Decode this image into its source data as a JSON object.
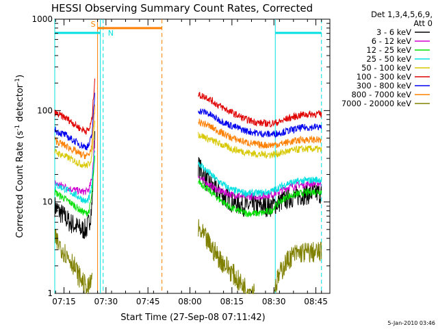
{
  "chart_data": {
    "type": "line",
    "title": "HESSI Observing Summary Count Rates, Corrected",
    "xlabel": "Start Time (27-Sep-08 07:11:42)",
    "ylabel_main": "Corrected Count Rate (s",
    "ylabel_sup1": "-1",
    "ylabel_mid": " detector",
    "ylabel_sup2": "-1",
    "ylabel_end": ")",
    "y_scale": "log",
    "ylim": [
      1,
      1000
    ],
    "xlim_minutes": [
      431.7,
      530.0
    ],
    "y_ticks": [
      {
        "value": 1,
        "label": "1"
      },
      {
        "value": 10,
        "label": "10"
      },
      {
        "value": 100,
        "label": "100"
      },
      {
        "value": 1000,
        "label": "1000"
      }
    ],
    "x_ticks": [
      {
        "value": 435,
        "label": "07:15"
      },
      {
        "value": 450,
        "label": "07:30"
      },
      {
        "value": 465,
        "label": "07:45"
      },
      {
        "value": 480,
        "label": "08:00"
      },
      {
        "value": 495,
        "label": "08:15"
      },
      {
        "value": 510,
        "label": "08:30"
      },
      {
        "value": 525,
        "label": "08:45"
      }
    ],
    "legend": {
      "placement": "right",
      "header_line1": "Det 1,3,4,5,6,9,",
      "header_line2": "Att 0"
    },
    "series": [
      {
        "name": "3 - 6 keV",
        "color": "#000000",
        "segments": [
          [
            [
              431.7,
              9
            ],
            [
              433,
              8
            ],
            [
              435,
              7
            ],
            [
              437,
              6
            ],
            [
              439,
              5.5
            ],
            [
              441,
              5
            ],
            [
              443,
              5
            ],
            [
              444,
              6
            ],
            [
              445,
              9
            ],
            [
              446,
              60
            ]
          ],
          [
            [
              483,
              25
            ],
            [
              486,
              17
            ],
            [
              490,
              13
            ],
            [
              495,
              10
            ],
            [
              500,
              9
            ],
            [
              505,
              9
            ],
            [
              509,
              9
            ],
            [
              512,
              10
            ],
            [
              515,
              11
            ],
            [
              520,
              12
            ],
            [
              525,
              12.5
            ],
            [
              527,
              12.5
            ]
          ]
        ]
      },
      {
        "name": "6 - 12 keV",
        "color": "#d000d0",
        "segments": [
          [
            [
              431.7,
              16
            ],
            [
              433,
              15.5
            ],
            [
              435,
              15
            ],
            [
              437,
              14
            ],
            [
              439,
              13.5
            ],
            [
              441,
              13
            ],
            [
              443,
              13
            ],
            [
              444,
              14
            ],
            [
              445,
              18
            ],
            [
              446,
              50
            ]
          ],
          [
            [
              483,
              19
            ],
            [
              486,
              16
            ],
            [
              490,
              13.5
            ],
            [
              495,
              12
            ],
            [
              500,
              11.5
            ],
            [
              505,
              11.5
            ],
            [
              509,
              12
            ],
            [
              512,
              13
            ],
            [
              515,
              14.5
            ],
            [
              520,
              15.5
            ],
            [
              525,
              16
            ],
            [
              527,
              16
            ]
          ]
        ]
      },
      {
        "name": "12 - 25 keV",
        "color": "#00e000",
        "segments": [
          [
            [
              431.7,
              13
            ],
            [
              433,
              12
            ],
            [
              435,
              11
            ],
            [
              437,
              10
            ],
            [
              439,
              9
            ],
            [
              441,
              8
            ],
            [
              443,
              7.5
            ],
            [
              444,
              8
            ],
            [
              445,
              12
            ],
            [
              446,
              30
            ]
          ],
          [
            [
              483,
              17
            ],
            [
              486,
              14
            ],
            [
              490,
              11
            ],
            [
              495,
              8.5
            ],
            [
              500,
              7.5
            ],
            [
              505,
              7.5
            ],
            [
              509,
              8
            ],
            [
              512,
              10
            ],
            [
              515,
              11.5
            ],
            [
              520,
              12.5
            ],
            [
              525,
              13
            ],
            [
              527,
              13
            ]
          ]
        ]
      },
      {
        "name": "25 - 50 keV",
        "color": "#00e0e0",
        "segments": [
          [
            [
              431.7,
              15
            ],
            [
              433,
              15
            ],
            [
              435,
              14
            ],
            [
              437,
              13
            ],
            [
              439,
              12
            ],
            [
              441,
              11
            ],
            [
              443,
              10
            ],
            [
              444,
              11
            ],
            [
              445,
              15
            ],
            [
              446,
              40
            ]
          ],
          [
            [
              483,
              27
            ],
            [
              486,
              22
            ],
            [
              490,
              17
            ],
            [
              495,
              13.5
            ],
            [
              500,
              12.5
            ],
            [
              505,
              12.5
            ],
            [
              509,
              13
            ],
            [
              512,
              14.5
            ],
            [
              515,
              16
            ],
            [
              520,
              17
            ],
            [
              525,
              17.5
            ],
            [
              527,
              17.5
            ]
          ]
        ]
      },
      {
        "name": "50 - 100 keV",
        "color": "#d8c800",
        "segments": [
          [
            [
              431.7,
              35
            ],
            [
              433,
              34
            ],
            [
              435,
              32
            ],
            [
              437,
              30
            ],
            [
              439,
              28
            ],
            [
              441,
              26
            ],
            [
              443,
              25
            ],
            [
              444,
              26
            ],
            [
              445,
              32
            ],
            [
              446,
              80
            ]
          ],
          [
            [
              483,
              55
            ],
            [
              486,
              50
            ],
            [
              490,
              44
            ],
            [
              495,
              38
            ],
            [
              500,
              35
            ],
            [
              505,
              33
            ],
            [
              509,
              33
            ],
            [
              512,
              34
            ],
            [
              515,
              36
            ],
            [
              520,
              38
            ],
            [
              525,
              38
            ],
            [
              527,
              37
            ]
          ]
        ]
      },
      {
        "name": "100 - 300 keV",
        "color": "#e00000",
        "segments": [
          [
            [
              431.7,
              95
            ],
            [
              433,
              90
            ],
            [
              435,
              85
            ],
            [
              437,
              78
            ],
            [
              439,
              70
            ],
            [
              441,
              63
            ],
            [
              443,
              60
            ],
            [
              444,
              62
            ],
            [
              445,
              80
            ],
            [
              446,
              230
            ]
          ],
          [
            [
              483,
              148
            ],
            [
              486,
              140
            ],
            [
              490,
              115
            ],
            [
              495,
              95
            ],
            [
              500,
              80
            ],
            [
              505,
              73
            ],
            [
              509,
              72
            ],
            [
              512,
              75
            ],
            [
              515,
              82
            ],
            [
              520,
              90
            ],
            [
              525,
              92
            ],
            [
              527,
              91
            ]
          ]
        ]
      },
      {
        "name": "300 - 800 keV",
        "color": "#0000f0",
        "segments": [
          [
            [
              431.7,
              62
            ],
            [
              433,
              58
            ],
            [
              435,
              55
            ],
            [
              437,
              50
            ],
            [
              439,
              46
            ],
            [
              441,
              42
            ],
            [
              443,
              40
            ],
            [
              444,
              42
            ],
            [
              445,
              55
            ],
            [
              446,
              150
            ]
          ],
          [
            [
              483,
              100
            ],
            [
              486,
              95
            ],
            [
              490,
              80
            ],
            [
              495,
              68
            ],
            [
              500,
              60
            ],
            [
              505,
              56
            ],
            [
              509,
              55
            ],
            [
              512,
              57
            ],
            [
              515,
              60
            ],
            [
              520,
              65
            ],
            [
              525,
              66
            ],
            [
              527,
              66
            ]
          ]
        ]
      },
      {
        "name": "800 - 7000 keV",
        "color": "#ff8000",
        "segments": [
          [
            [
              431.7,
              48
            ],
            [
              433,
              45
            ],
            [
              435,
              42
            ],
            [
              437,
              39
            ],
            [
              439,
              36
            ],
            [
              441,
              33
            ],
            [
              443,
              32
            ],
            [
              444,
              33
            ],
            [
              445,
              42
            ],
            [
              446,
              110
            ]
          ],
          [
            [
              483,
              75
            ],
            [
              486,
              70
            ],
            [
              490,
              60
            ],
            [
              495,
              50
            ],
            [
              500,
              45
            ],
            [
              505,
              42
            ],
            [
              509,
              42
            ],
            [
              512,
              43
            ],
            [
              515,
              45
            ],
            [
              520,
              48
            ],
            [
              525,
              48
            ],
            [
              527,
              47
            ]
          ]
        ]
      },
      {
        "name": "7000 - 20000 keV",
        "color": "#808000",
        "segments": [
          [
            [
              431.7,
              4
            ],
            [
              434,
              3.2
            ],
            [
              436,
              2.6
            ],
            [
              438,
              2.2
            ],
            [
              440,
              1.6
            ],
            [
              442,
              1.3
            ],
            [
              443,
              1.1
            ],
            [
              444,
              1.15
            ],
            [
              445,
              1.5
            ]
          ],
          [
            [
              483,
              5
            ],
            [
              485,
              4.2
            ],
            [
              487,
              3.4
            ],
            [
              489,
              2.8
            ],
            [
              491,
              2.3
            ],
            [
              493,
              2
            ],
            [
              495,
              1.7
            ],
            [
              497,
              1.4
            ],
            [
              499,
              1.2
            ],
            [
              501,
              1.1
            ],
            [
              503,
              1.05
            ]
          ],
          [
            [
              510,
              1.1
            ],
            [
              512,
              1.6
            ],
            [
              514,
              2.1
            ],
            [
              516,
              2.5
            ],
            [
              518,
              2.7
            ],
            [
              520,
              2.8
            ],
            [
              522,
              2.8
            ],
            [
              525,
              2.8
            ],
            [
              527,
              2.8
            ]
          ]
        ]
      }
    ],
    "annotations": {
      "night_markers": [
        {
          "start": 431.7,
          "end": 448.0,
          "label": "",
          "color": "#00e0e0"
        },
        {
          "start": 510.5,
          "end": 527.0,
          "label": "",
          "color": "#00e0e0"
        }
      ],
      "saa_bar": {
        "start": 447.0,
        "end": 470.0,
        "label": "S",
        "color": "#ff8000"
      },
      "night_label": {
        "at": 449.5,
        "label": "N",
        "color": "#00e0e0"
      },
      "vlines": [
        {
          "x": 431.7,
          "color": "#00e0e0",
          "style": "solid"
        },
        {
          "x": 447.0,
          "color": "#ff8000",
          "style": "solid"
        },
        {
          "x": 448.0,
          "color": "#00e0e0",
          "style": "solid"
        },
        {
          "x": 449.0,
          "color": "#00e0e0",
          "style": "dash"
        },
        {
          "x": 470.0,
          "color": "#ff8000",
          "style": "dash"
        },
        {
          "x": 510.5,
          "color": "#00e0e0",
          "style": "solid"
        },
        {
          "x": 527.0,
          "color": "#00e0e0",
          "style": "dash"
        }
      ]
    },
    "footer_timestamp": "5-Jan-2010 03:46"
  }
}
